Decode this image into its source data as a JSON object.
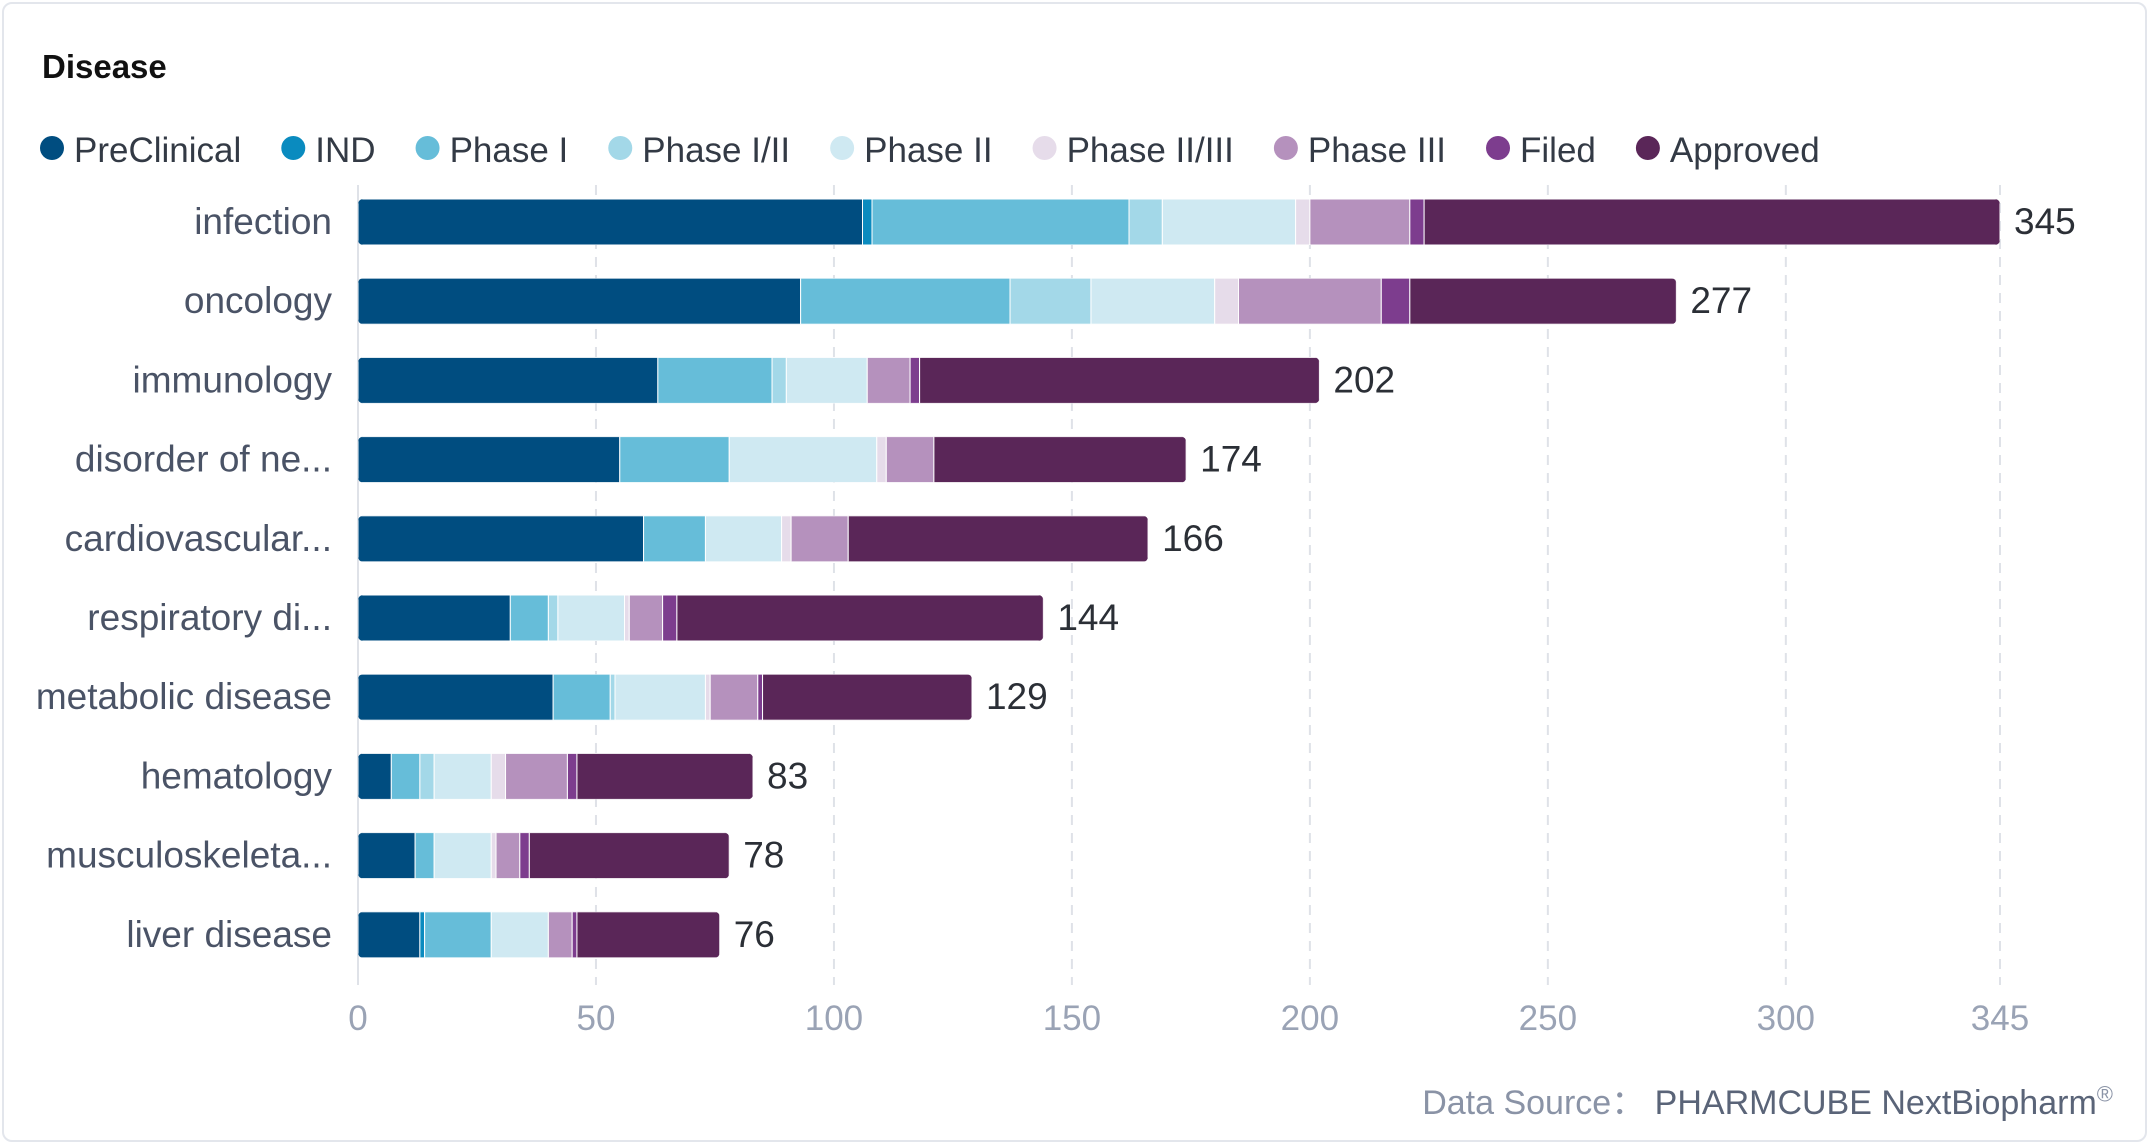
{
  "card": {
    "title": "Disease"
  },
  "source": {
    "label": "Data Source：",
    "brand": "PHARMCUBE NextBiopharm",
    "mark": "®"
  },
  "chart_data": {
    "type": "bar",
    "orientation": "horizontal",
    "stacked": true,
    "title": "Disease",
    "xlabel": "",
    "ylabel": "",
    "xlim": [
      0,
      345
    ],
    "x_ticks": [
      0,
      50,
      100,
      150,
      200,
      250,
      300,
      345
    ],
    "grid": true,
    "legend_position": "top-left",
    "categories": [
      "infection",
      "oncology",
      "immunology",
      "disorder of ne...",
      "cardiovascular...",
      "respiratory di...",
      "metabolic disease",
      "hematology",
      "musculoskeleta...",
      "liver disease"
    ],
    "totals": [
      345,
      277,
      202,
      174,
      166,
      144,
      129,
      83,
      78,
      76
    ],
    "series": [
      {
        "name": "PreClinical",
        "color": "#004d80",
        "values": [
          106,
          93,
          63,
          55,
          60,
          32,
          41,
          7,
          12,
          13
        ]
      },
      {
        "name": "IND",
        "color": "#0a8bbf",
        "values": [
          2,
          0,
          0,
          0,
          0,
          0,
          0,
          0,
          0,
          1
        ]
      },
      {
        "name": "Phase I",
        "color": "#66bdd9",
        "values": [
          54,
          44,
          24,
          23,
          13,
          8,
          12,
          6,
          4,
          14
        ]
      },
      {
        "name": "Phase I/II",
        "color": "#a3d8e8",
        "values": [
          7,
          17,
          3,
          0,
          0,
          2,
          1,
          3,
          0,
          0
        ]
      },
      {
        "name": "Phase II",
        "color": "#cfe9f2",
        "values": [
          28,
          26,
          17,
          31,
          16,
          14,
          19,
          12,
          12,
          12
        ]
      },
      {
        "name": "Phase II/III",
        "color": "#e6dcea",
        "values": [
          3,
          5,
          0,
          2,
          2,
          1,
          1,
          3,
          1,
          0
        ]
      },
      {
        "name": "Phase III",
        "color": "#b591bd",
        "values": [
          21,
          30,
          9,
          10,
          12,
          7,
          10,
          13,
          5,
          5
        ]
      },
      {
        "name": "Filed",
        "color": "#7d3d8e",
        "values": [
          3,
          6,
          2,
          0,
          0,
          3,
          1,
          2,
          2,
          1
        ]
      },
      {
        "name": "Approved",
        "color": "#5a2658",
        "values": [
          121,
          56,
          84,
          53,
          63,
          77,
          44,
          37,
          42,
          30
        ]
      }
    ]
  }
}
